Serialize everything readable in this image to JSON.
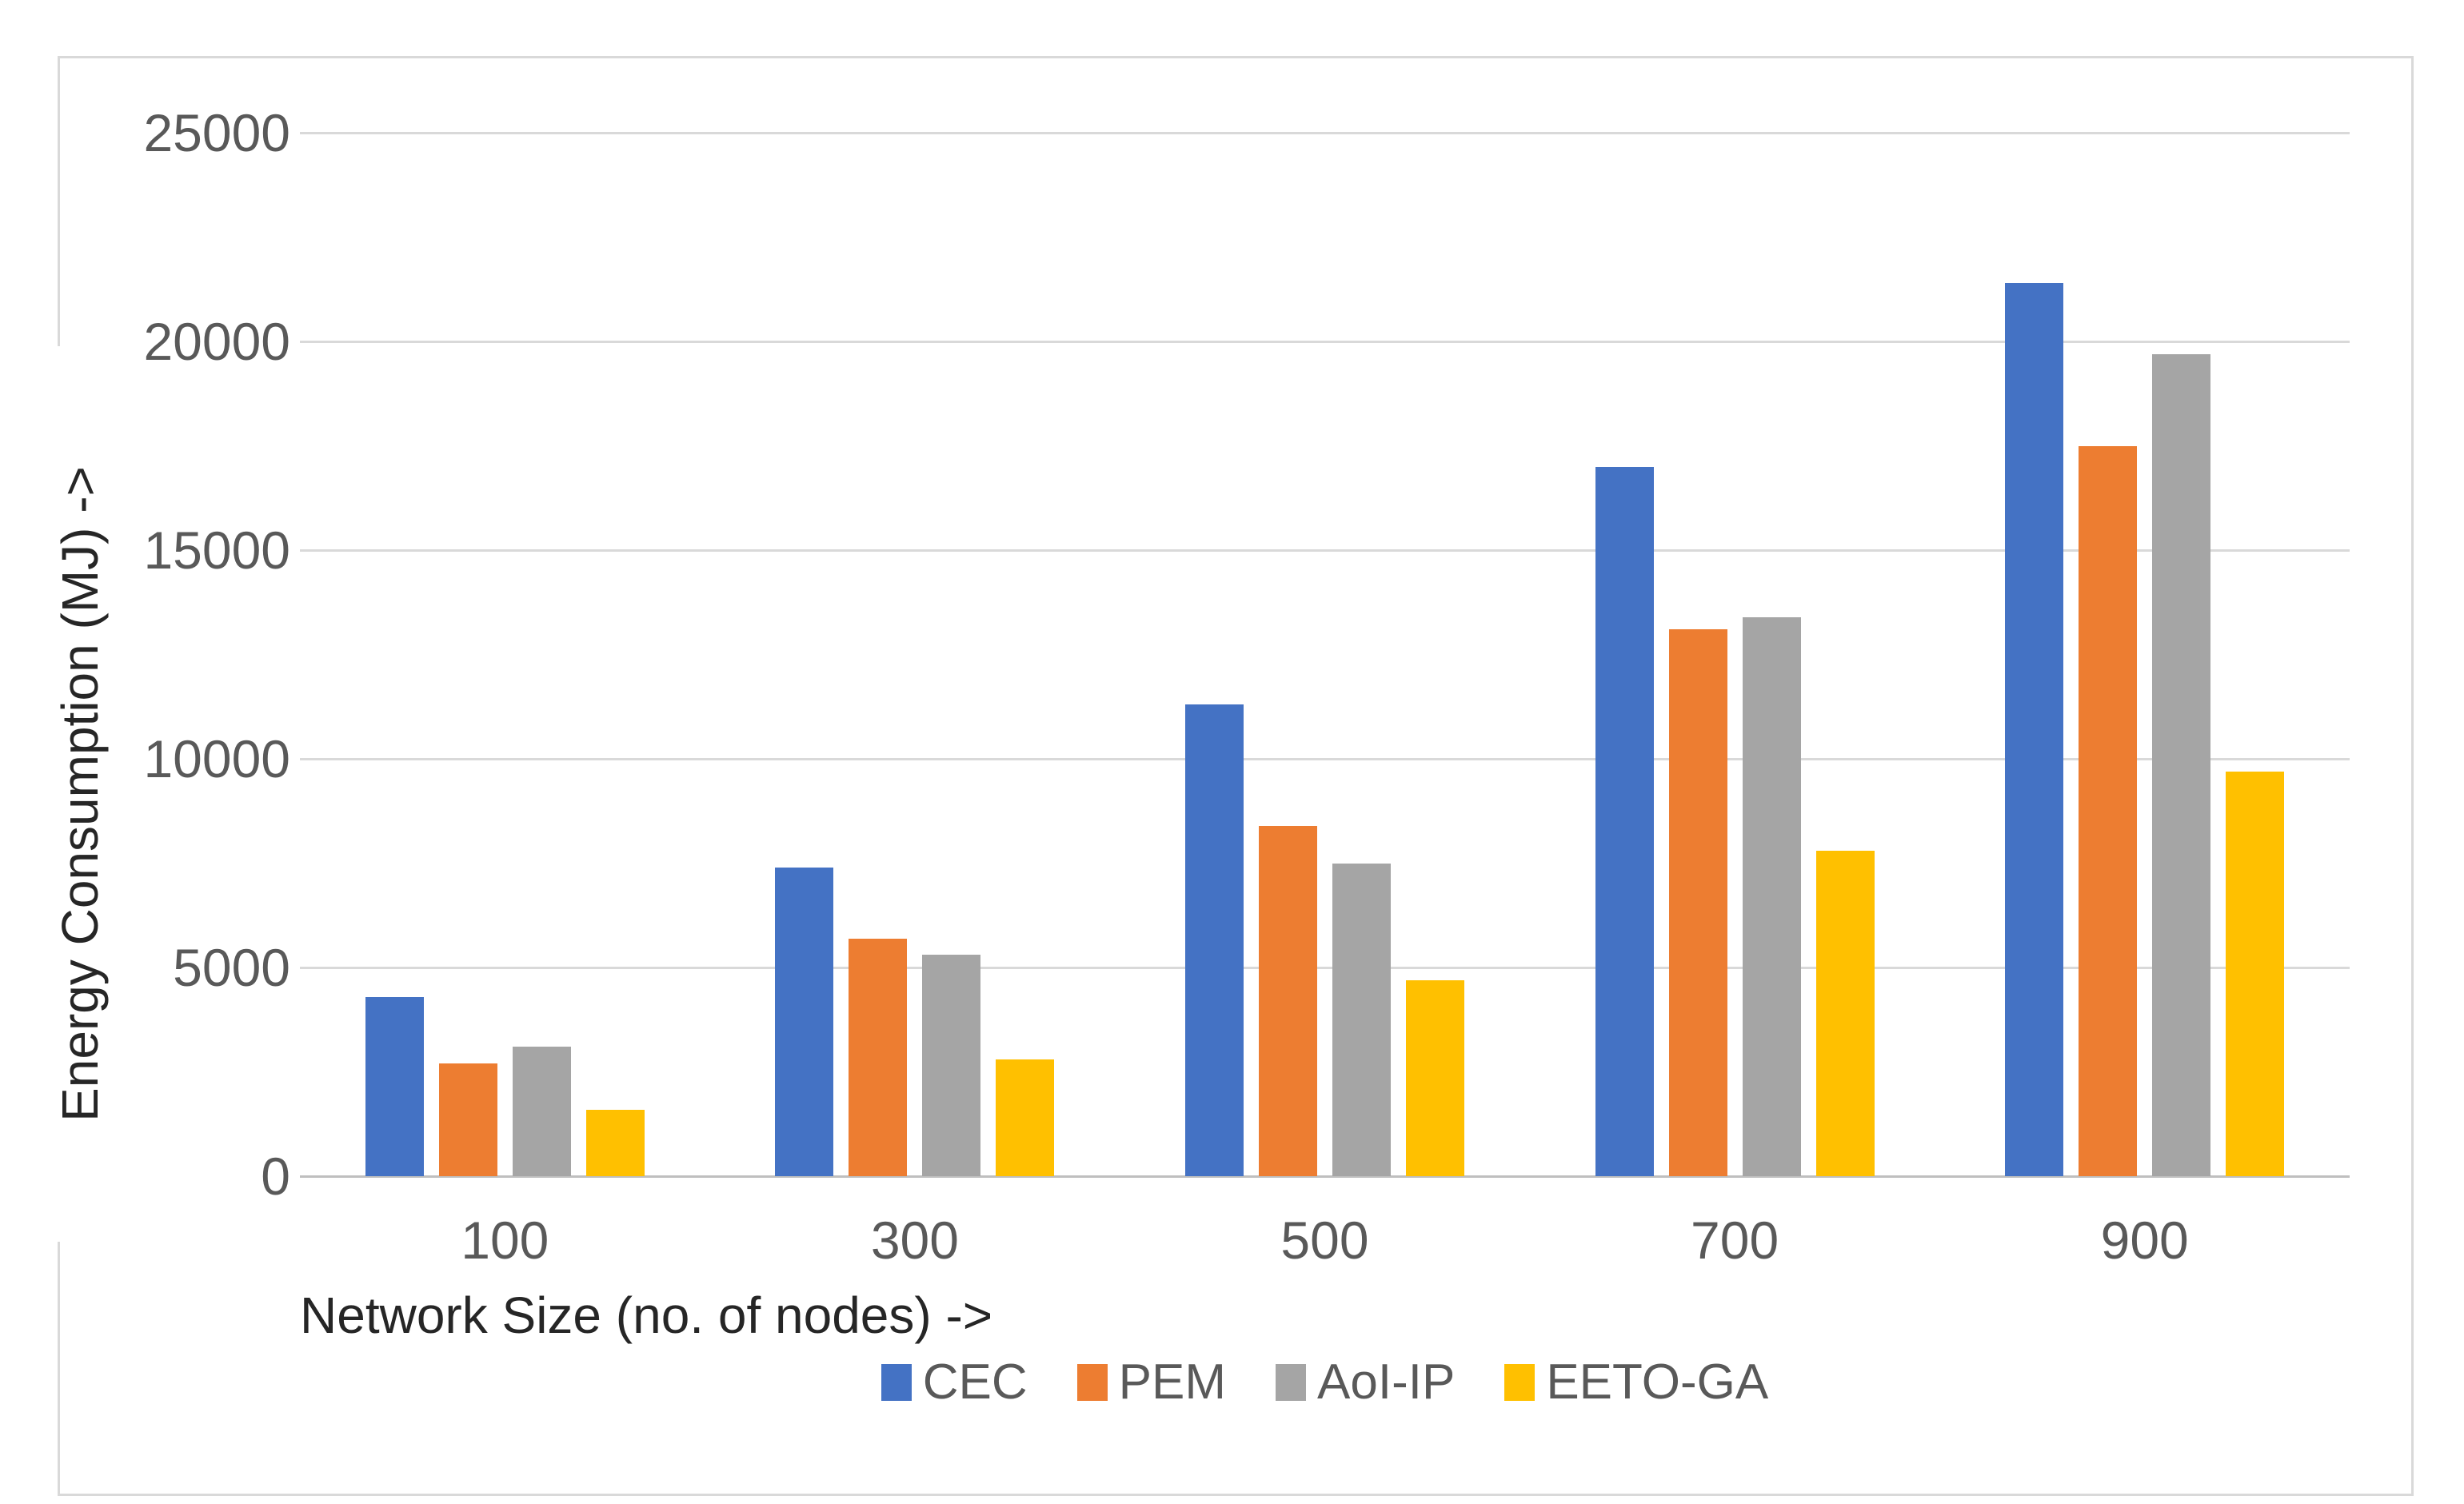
{
  "chart_data": {
    "type": "bar",
    "title": "",
    "xlabel": "Network Size (no. of nodes) ->",
    "ylabel": "Energy Consumption (MJ) ->",
    "categories": [
      "100",
      "300",
      "500",
      "700",
      "900"
    ],
    "series": [
      {
        "name": "CEC",
        "color": "#4472C4",
        "values": [
          4300,
          7400,
          11300,
          17000,
          21400
        ]
      },
      {
        "name": "PEM",
        "color": "#ED7D31",
        "values": [
          2700,
          5700,
          8400,
          13100,
          17500
        ]
      },
      {
        "name": "AoI-IP",
        "color": "#A5A5A5",
        "values": [
          3100,
          5300,
          7500,
          13400,
          19700
        ]
      },
      {
        "name": "EETO-GA",
        "color": "#FFC000",
        "values": [
          1600,
          2800,
          4700,
          7800,
          9700
        ]
      }
    ],
    "ylim": [
      0,
      25000
    ],
    "ytick_interval": 5000,
    "yticks": [
      0,
      5000,
      10000,
      15000,
      20000,
      25000
    ],
    "grid": true,
    "legend_position": "bottom"
  },
  "styles": {
    "gridline_color": "#D9D9D9",
    "baseline_color": "#BFBFBF",
    "frame_border_color": "#D9D9D9",
    "tick_label_color": "#595959",
    "axis_title_color": "#262626",
    "legend_text_color": "#595959",
    "background": "#FFFFFF"
  }
}
